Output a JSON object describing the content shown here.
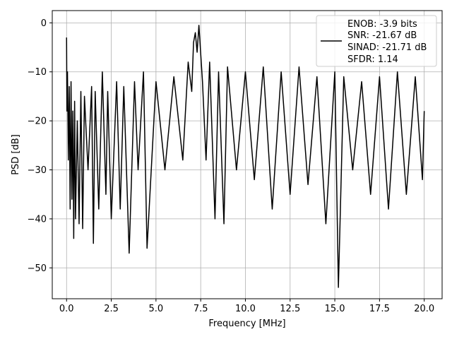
{
  "chart_data": {
    "type": "line",
    "title": "",
    "xlabel": "Frequency [MHz]",
    "ylabel": "PSD [dB]",
    "xlim": [
      -0.8,
      21.0
    ],
    "ylim": [
      -56.3,
      2.5
    ],
    "xticks": [
      0.0,
      2.5,
      5.0,
      7.5,
      10.0,
      12.5,
      15.0,
      17.5,
      20.0
    ],
    "xtick_labels": [
      "0.0",
      "2.5",
      "5.0",
      "7.5",
      "10.0",
      "12.5",
      "15.0",
      "17.5",
      "20.0"
    ],
    "yticks": [
      0,
      -10,
      -20,
      -30,
      -40,
      -50
    ],
    "ytick_labels": [
      "0",
      "−10",
      "−20",
      "−30",
      "−40",
      "−50"
    ],
    "grid": true,
    "line_color": "#000000",
    "legend": {
      "placement": "top-right",
      "entries": [
        "ENOB: -3.9 bits",
        "SNR: -21.67 dB",
        "SINAD: -21.71 dB",
        "SFDR: 1.14"
      ]
    },
    "series": [
      {
        "x": [
          0.0,
          0.02,
          0.05,
          0.1,
          0.15,
          0.2,
          0.25,
          0.3,
          0.35,
          0.4,
          0.45,
          0.5,
          0.6,
          0.7,
          0.8,
          0.9,
          1.0,
          1.2,
          1.4,
          1.5,
          1.6,
          1.8,
          2.0,
          2.2,
          2.3,
          2.5,
          2.8,
          3.0,
          3.2,
          3.5,
          3.8,
          4.0,
          4.3,
          4.5,
          5.0,
          5.5,
          6.0,
          6.5,
          6.8,
          7.0,
          7.1,
          7.2,
          7.3,
          7.4,
          7.6,
          7.8,
          8.0,
          8.3,
          8.5,
          8.8,
          9.0,
          9.5,
          10.0,
          10.5,
          11.0,
          11.5,
          12.0,
          12.5,
          13.0,
          13.5,
          14.0,
          14.5,
          15.0,
          15.2,
          15.5,
          16.0,
          16.5,
          17.0,
          17.5,
          18.0,
          18.5,
          19.0,
          19.5,
          19.9,
          20.0
        ],
        "y": [
          -3,
          -18,
          -10,
          -28,
          -13,
          -38,
          -12,
          -36,
          -18,
          -44,
          -16,
          -40,
          -20,
          -41,
          -14,
          -42,
          -15,
          -30,
          -13,
          -45,
          -14,
          -38,
          -10,
          -35,
          -14,
          -40,
          -12,
          -38,
          -13,
          -47,
          -12,
          -30,
          -10,
          -46,
          -12,
          -30,
          -11,
          -28,
          -8,
          -14,
          -4,
          -2,
          -6,
          -0.5,
          -12,
          -28,
          -8,
          -40,
          -10,
          -41,
          -9,
          -30,
          -10,
          -32,
          -9,
          -38,
          -10,
          -35,
          -9,
          -33,
          -11,
          -41,
          -10,
          -54,
          -11,
          -30,
          -12,
          -35,
          -11,
          -38,
          -10,
          -35,
          -11,
          -32,
          -18
        ]
      }
    ]
  }
}
